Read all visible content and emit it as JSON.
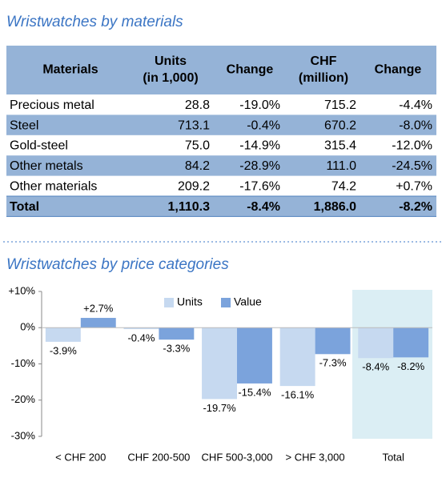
{
  "table": {
    "title": "Wristwatches by materials",
    "header": [
      [
        "Materials"
      ],
      [
        "Units",
        "(in 1,000)"
      ],
      [
        "Change"
      ],
      [
        "CHF",
        "(million)"
      ],
      [
        "Change"
      ]
    ],
    "rows": [
      [
        "Precious metal",
        "28.8",
        "-19.0%",
        "715.2",
        "-4.4%"
      ],
      [
        "Steel",
        "713.1",
        "-0.4%",
        "670.2",
        "-8.0%"
      ],
      [
        "Gold-steel",
        "75.0",
        "-14.9%",
        "315.4",
        "-12.0%"
      ],
      [
        "Other metals",
        "84.2",
        "-28.9%",
        "111.0",
        "-24.5%"
      ],
      [
        "Other materials",
        "209.2",
        "-17.6%",
        "74.2",
        "+0.7%"
      ],
      [
        "Total",
        "1,110.3",
        "-8.4%",
        "1,886.0",
        "-8.2%"
      ]
    ]
  },
  "chart_data": {
    "type": "bar",
    "title": "Wristwatches by price categories",
    "categories": [
      "< CHF 200",
      "CHF 200-500",
      "CHF 500-3,000",
      "> CHF 3,000",
      "Total"
    ],
    "series": [
      {
        "name": "Units",
        "color": "#c6d9f0",
        "values": [
          -3.9,
          -0.4,
          -19.7,
          -16.1,
          -8.4
        ],
        "value_labels": [
          "-3.9%",
          "-0.4%",
          "-19.7%",
          "-16.1%",
          "-8.4%"
        ]
      },
      {
        "name": "Value",
        "color": "#7ba3dc",
        "values": [
          2.7,
          -3.3,
          -15.4,
          -7.3,
          -8.2
        ],
        "value_labels": [
          "+2.7%",
          "-3.3%",
          "-15.4%",
          "-7.3%",
          "-8.2%"
        ]
      }
    ],
    "ylim": [
      -30,
      10
    ],
    "yticks": [
      {
        "value": 10,
        "label": "+10%"
      },
      {
        "value": 0,
        "label": "0%"
      },
      {
        "value": -10,
        "label": "-10%"
      },
      {
        "value": -20,
        "label": "-20%"
      },
      {
        "value": -30,
        "label": "-30%"
      }
    ],
    "legend": "top",
    "grid": false
  }
}
